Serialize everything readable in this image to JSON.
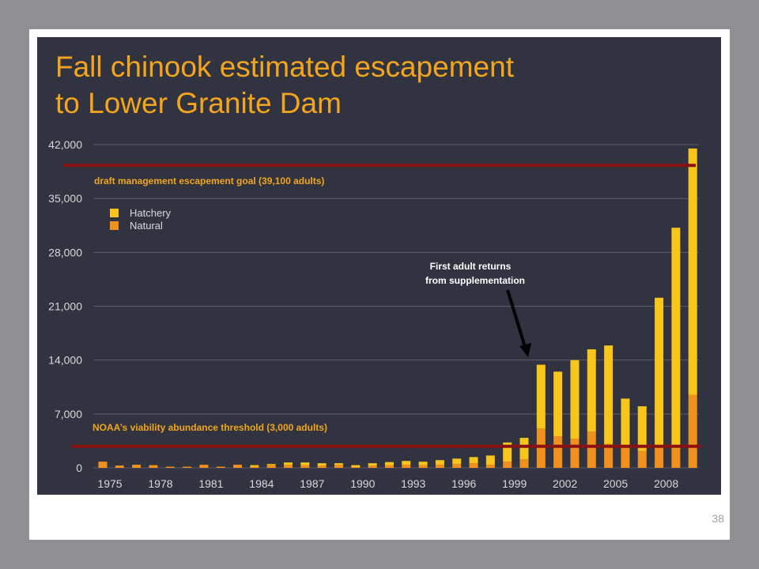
{
  "slide": {
    "title_line1": "Fall chinook estimated escapement",
    "title_line2": "to Lower Granite Dam",
    "page_number": "38"
  },
  "colors": {
    "background": "#313440",
    "title": "#f3a51d",
    "hatchery": "#f7c51b",
    "natural": "#f0901e",
    "threshold_line": "#8b1212",
    "grid": "#5b5e69",
    "tick_text": "#d8d8d8"
  },
  "chart_data": {
    "type": "bar",
    "stacked": true,
    "title": "Fall chinook estimated escapement to Lower Granite Dam",
    "x": [
      1975,
      1976,
      1977,
      1978,
      1979,
      1980,
      1981,
      1982,
      1983,
      1984,
      1985,
      1986,
      1987,
      1988,
      1989,
      1990,
      1991,
      1992,
      1993,
      1994,
      1995,
      1996,
      1997,
      1998,
      1999,
      2000,
      2001,
      2002,
      2003,
      2004,
      2005,
      2006,
      2007,
      2008,
      2009,
      2010
    ],
    "xticks": [
      "1975",
      "1978",
      "1981",
      "1984",
      "1987",
      "1990",
      "1993",
      "1996",
      "1999",
      "2002",
      "2005",
      "2008"
    ],
    "yticks": [
      "0",
      "7,000",
      "14,000",
      "21,000",
      "28,000",
      "35,000",
      "42,000"
    ],
    "ylim": [
      0,
      42000
    ],
    "series": [
      {
        "name": "Natural",
        "color": "#f0901e",
        "values": [
          800,
          300,
          400,
          350,
          150,
          150,
          400,
          150,
          400,
          150,
          400,
          400,
          350,
          300,
          400,
          100,
          300,
          350,
          400,
          350,
          400,
          500,
          600,
          400,
          800,
          1100,
          5100,
          4100,
          3800,
          4700,
          3100,
          2600,
          2200,
          2700,
          2500,
          9500
        ]
      },
      {
        "name": "Hatchery",
        "color": "#f7c51b",
        "values": [
          0,
          0,
          0,
          0,
          0,
          0,
          0,
          0,
          0,
          200,
          100,
          300,
          350,
          300,
          200,
          250,
          300,
          400,
          500,
          450,
          600,
          700,
          800,
          1200,
          2500,
          2800,
          8300,
          8400,
          10200,
          10700,
          12800,
          6400,
          5800,
          19400,
          28700,
          32000
        ]
      }
    ],
    "legend": {
      "placement": "top-left",
      "entries": [
        "Hatchery",
        "Natural"
      ]
    },
    "reference_lines": [
      {
        "label": "draft management escapement goal (39,100 adults)",
        "value": 39100
      },
      {
        "label": "NOAA’s viability abundance threshold (3,000 adults)",
        "value": 3000
      }
    ],
    "annotation": {
      "line1": "First adult returns",
      "line2": "from supplementation",
      "points_to_year": 2001
    },
    "grid": true
  }
}
